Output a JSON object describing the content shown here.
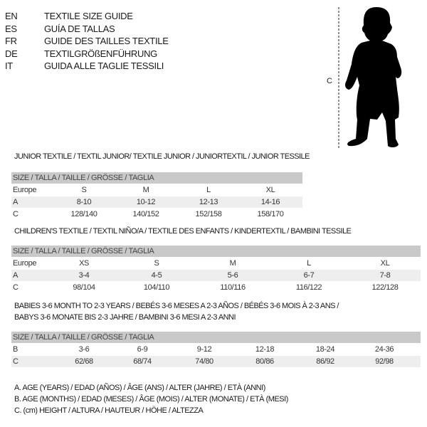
{
  "languages": [
    {
      "code": "EN",
      "title": "TEXTILE SIZE GUIDE"
    },
    {
      "code": "ES",
      "title": "GUÍA DE TALLAS"
    },
    {
      "code": "FR",
      "title": "GUIDE DES TAILLES TEXTILE"
    },
    {
      "code": "DE",
      "title": "TEXTILGRÖßENFÜHRUNG"
    },
    {
      "code": "IT",
      "title": "GUIDA ALLE TAGLIE TESSILI"
    }
  ],
  "figure": {
    "measure_label": "C"
  },
  "sections": [
    {
      "heading": [
        "JUNIOR TEXTILE / TEXTIL JUNIOR/ TEXTILE JUNIOR / JUNIORTEXTIL / JUNIOR TESSILE"
      ],
      "size_header": "SIZE / TALLA / TAILLE / GRÖSSE / TAGLIA",
      "rows": [
        {
          "label": "Europe",
          "values": [
            "S",
            "M",
            "L",
            "XL"
          ]
        },
        {
          "label": "A",
          "values": [
            "8-10",
            "10-12",
            "12-13",
            "14-16"
          ]
        },
        {
          "label": "C",
          "values": [
            "128/140",
            "140/152",
            "152/158",
            "158/170"
          ]
        }
      ]
    },
    {
      "heading": [
        "CHILDREN'S TEXTILE / TEXTIL NIÑO/A / TEXTILE DES ENFANTS / KINDERTEXTIL / BAMBINI TESSILE"
      ],
      "size_header": "SIZE / TALLA / TAILLE / GRÖSSE / TAGLIA",
      "rows": [
        {
          "label": "Europe",
          "values": [
            "XS",
            "S",
            "M",
            "L",
            "XL"
          ]
        },
        {
          "label": "A",
          "values": [
            "3-4",
            "4-5",
            "5-6",
            "6-7",
            "7-8"
          ]
        },
        {
          "label": "C",
          "values": [
            "98/104",
            "104/110",
            "110/116",
            "116/122",
            "122/128"
          ]
        }
      ]
    },
    {
      "heading": [
        "BABIES 3-6 MONTH TO 2-3 YEARS / BEBÉS 3-6 MESES A 2-3 AÑOS / BÉBÉS 3-6 MOIS À 2-3 ANS /",
        "BABYS 3-6 MONATE BIS 2-3 JAHRE / BAMBINI 3-6 MESI A 2-3 ANNI"
      ],
      "size_header": "SIZE / TALLA / TAILLE / GRÖSSE / TAGLIA",
      "rows": [
        {
          "label": "B",
          "values": [
            "3-6",
            "6-9",
            "9-12",
            "12-18",
            "18-24",
            "24-36"
          ]
        },
        {
          "label": "C",
          "values": [
            "62/68",
            "68/74",
            "74/80",
            "80/86",
            "86/92",
            "92/98"
          ]
        }
      ]
    }
  ],
  "legend": [
    "A. AGE (YEARS) / EDAD (AÑOS) / ÂGE (ANS) / ALTER (JAHRE) / ETÀ (ANNI)",
    "B. AGE (MONTHS) / EDAD (MESES) / ÂGE (MOIS) / ALTER (MONATE) / ETÀ (MESI)",
    "C. (cm) HEIGHT / ALTURA / HAUTEUR / HÖHE / ALTEZZA"
  ],
  "colors": {
    "header_row": "#c9c9c9",
    "shaded_row": "#eeeeee",
    "text": "#1a1a1a"
  }
}
